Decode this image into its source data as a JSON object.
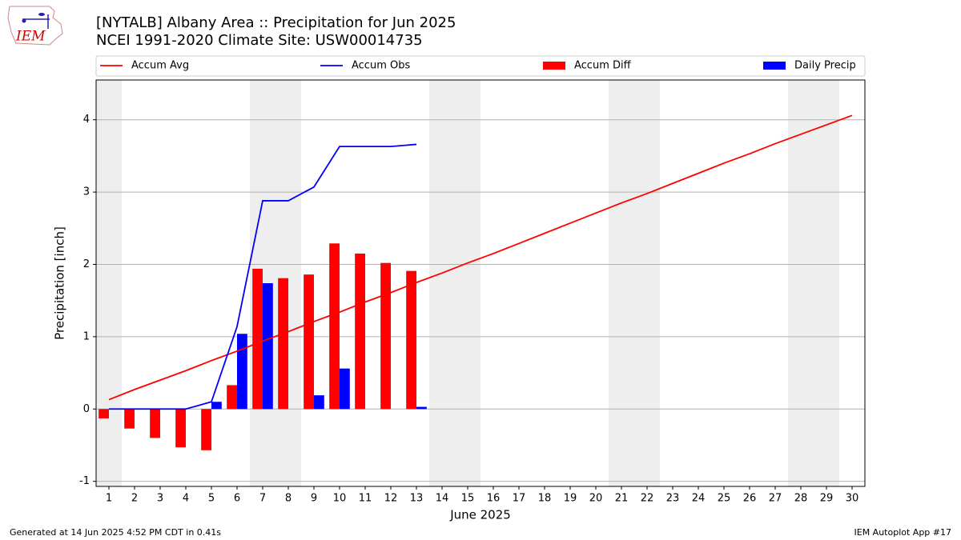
{
  "logo": "IEM",
  "footer": {
    "left": "Generated at 14 Jun 2025 4:52 PM CDT in 0.41s",
    "right": "IEM Autoplot App #17"
  },
  "chart_data": {
    "type": "combo",
    "title": "[NYTALB] Albany Area :: Precipitation for Jun 2025",
    "subtitle": "NCEI 1991-2020 Climate Site: USW00014735",
    "x_label": "June 2025",
    "y_label": "Precipitation [inch]",
    "x": [
      1,
      2,
      3,
      4,
      5,
      6,
      7,
      8,
      9,
      10,
      11,
      12,
      13,
      14,
      15,
      16,
      17,
      18,
      19,
      20,
      21,
      22,
      23,
      24,
      25,
      26,
      27,
      28,
      29,
      30
    ],
    "xlim": [
      0.5,
      30.5
    ],
    "xticks": [
      1,
      2,
      3,
      4,
      5,
      6,
      7,
      8,
      9,
      10,
      11,
      12,
      13,
      14,
      15,
      16,
      17,
      18,
      19,
      20,
      21,
      22,
      23,
      24,
      25,
      26,
      27,
      28,
      29,
      30
    ],
    "ylim": [
      -1.07,
      4.55
    ],
    "yticks": [
      -1,
      0,
      1,
      2,
      3,
      4
    ],
    "grid": true,
    "shaded_days": [
      1,
      7,
      8,
      14,
      15,
      21,
      22,
      28,
      29
    ],
    "shade_color": "#eeeeee",
    "legend": "top",
    "series": [
      {
        "name": "Accum Avg",
        "type": "line",
        "color": "#ff0000",
        "values": [
          0.13,
          0.27,
          0.4,
          0.53,
          0.67,
          0.8,
          0.94,
          1.07,
          1.21,
          1.34,
          1.48,
          1.61,
          1.75,
          1.88,
          2.02,
          2.15,
          2.29,
          2.43,
          2.57,
          2.71,
          2.85,
          2.98,
          3.12,
          3.26,
          3.4,
          3.53,
          3.67,
          3.8,
          3.93,
          4.06
        ]
      },
      {
        "name": "Accum Obs",
        "type": "line",
        "color": "#0000ff",
        "values": [
          0,
          0,
          0,
          0,
          0.1,
          1.14,
          2.88,
          2.88,
          3.07,
          3.63,
          3.63,
          3.63,
          3.66,
          null,
          null,
          null,
          null,
          null,
          null,
          null,
          null,
          null,
          null,
          null,
          null,
          null,
          null,
          null,
          null,
          null
        ]
      },
      {
        "name": "Accum Diff",
        "type": "bar",
        "offset": -1,
        "color": "#ff0000",
        "values": [
          -0.13,
          -0.27,
          -0.4,
          -0.53,
          -0.57,
          0.33,
          1.94,
          1.81,
          1.86,
          2.29,
          2.15,
          2.02,
          1.91,
          null,
          null,
          null,
          null,
          null,
          null,
          null,
          null,
          null,
          null,
          null,
          null,
          null,
          null,
          null,
          null,
          null
        ]
      },
      {
        "name": "Daily Precip",
        "type": "bar",
        "offset": 0,
        "color": "#0000ff",
        "values": [
          0,
          0,
          0,
          0,
          0.1,
          1.04,
          1.74,
          0,
          0.19,
          0.56,
          0,
          0,
          0.03,
          null,
          null,
          null,
          null,
          null,
          null,
          null,
          null,
          null,
          null,
          null,
          null,
          null,
          null,
          null,
          null,
          null
        ]
      }
    ]
  }
}
